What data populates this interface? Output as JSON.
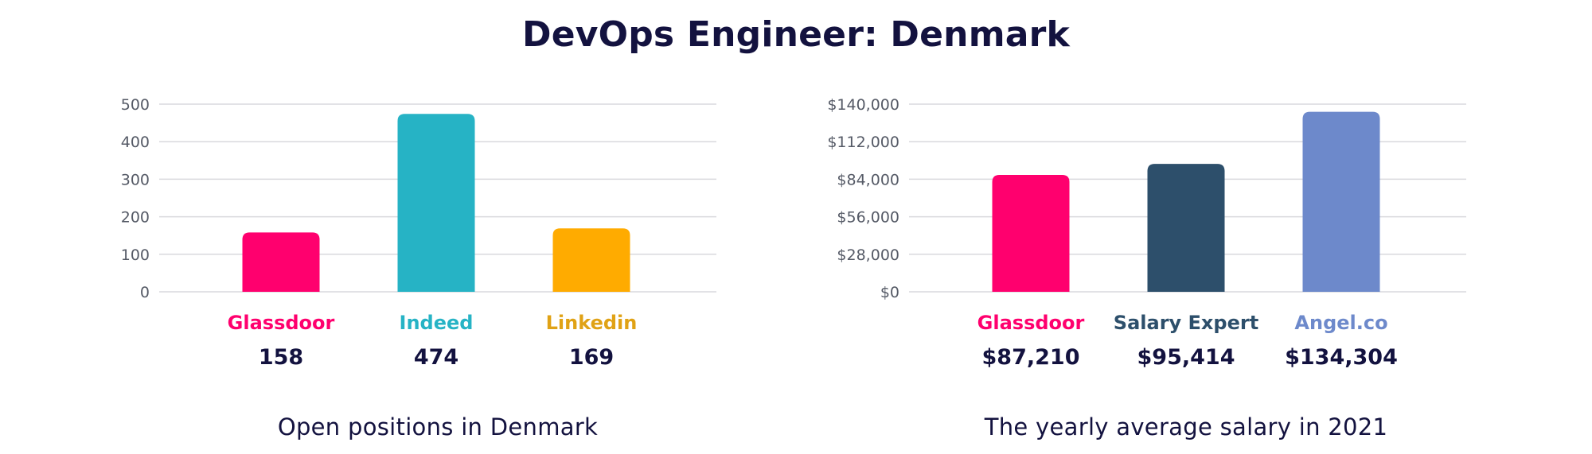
{
  "title": "DevOps Engineer: Denmark",
  "chart_data": [
    {
      "type": "bar",
      "caption": "Open positions in Denmark",
      "categories": [
        "Glassdoor",
        "Indeed",
        "Linkedin"
      ],
      "values": [
        158,
        474,
        169
      ],
      "value_labels": [
        "158",
        "474",
        "169"
      ],
      "colors": [
        "#ff006e",
        "#26b3c5",
        "#ffab00"
      ],
      "category_label_colors": [
        "#ff006e",
        "#26b3c5",
        "#e0a215"
      ],
      "ylim": [
        0,
        500
      ],
      "yticks": [
        0,
        100,
        200,
        300,
        400,
        500
      ],
      "ytick_labels": [
        "0",
        "100",
        "200",
        "300",
        "400",
        "500"
      ],
      "grid": true,
      "xlabel": "",
      "ylabel": ""
    },
    {
      "type": "bar",
      "caption": "The yearly average salary in 2021",
      "categories": [
        "Glassdoor",
        "Salary Expert",
        "Angel.co"
      ],
      "values": [
        87210,
        95414,
        134304
      ],
      "value_labels": [
        "$87,210",
        "$95,414",
        "$134,304"
      ],
      "colors": [
        "#ff006e",
        "#2d4f6b",
        "#6d89cb"
      ],
      "category_label_colors": [
        "#ff006e",
        "#2d4f6b",
        "#6d89cb"
      ],
      "ylim": [
        0,
        140000
      ],
      "yticks": [
        0,
        28000,
        56000,
        84000,
        112000,
        140000
      ],
      "ytick_labels": [
        "$0",
        "$28,000",
        "$56,000",
        "$84,000",
        "$112,000",
        "$140,000"
      ],
      "grid": true,
      "xlabel": "",
      "ylabel": ""
    }
  ]
}
